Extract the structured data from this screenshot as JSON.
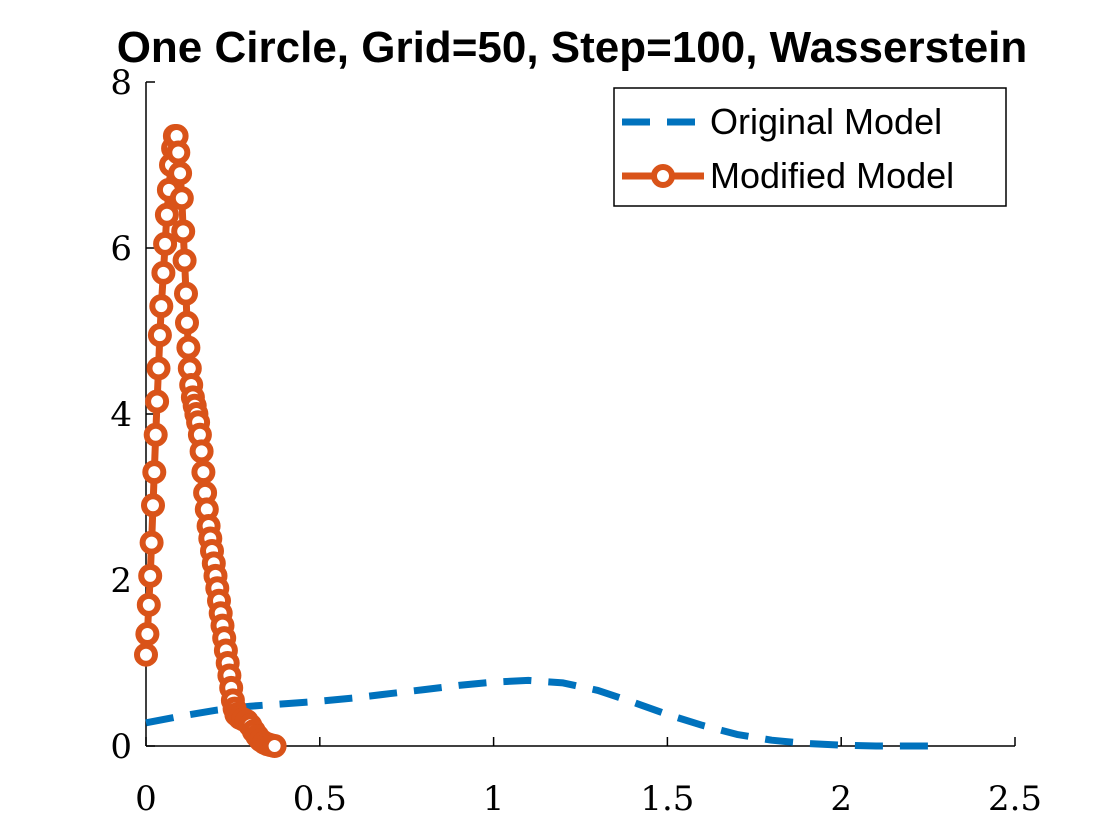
{
  "chart_data": {
    "type": "line",
    "title": "One Circle, Grid=50, Step=100, Wasserstein",
    "xlabel": "",
    "ylabel": "",
    "xlim": [
      0,
      2.5
    ],
    "ylim": [
      0,
      8
    ],
    "xticks": [
      "0",
      "0.5",
      "1",
      "1.5",
      "2",
      "2.5"
    ],
    "yticks": [
      "0",
      "2",
      "4",
      "6",
      "8"
    ],
    "grid": false,
    "legend_position": "top-right",
    "series": [
      {
        "name": "Original Model",
        "style": "dashed",
        "color": "#0072BD",
        "points": [
          [
            0.0,
            0.28
          ],
          [
            0.1,
            0.36
          ],
          [
            0.2,
            0.43
          ],
          [
            0.3,
            0.48
          ],
          [
            0.4,
            0.51
          ],
          [
            0.5,
            0.54
          ],
          [
            0.6,
            0.58
          ],
          [
            0.7,
            0.63
          ],
          [
            0.8,
            0.68
          ],
          [
            0.9,
            0.73
          ],
          [
            1.0,
            0.77
          ],
          [
            1.1,
            0.79
          ],
          [
            1.2,
            0.76
          ],
          [
            1.3,
            0.67
          ],
          [
            1.4,
            0.53
          ],
          [
            1.5,
            0.38
          ],
          [
            1.6,
            0.25
          ],
          [
            1.7,
            0.14
          ],
          [
            1.8,
            0.07
          ],
          [
            1.9,
            0.03
          ],
          [
            2.0,
            0.01
          ],
          [
            2.1,
            0.0
          ],
          [
            2.2,
            0.0
          ],
          [
            2.26,
            0.0
          ]
        ]
      },
      {
        "name": "Modified Model",
        "style": "solid-with-circles",
        "color": "#D95319",
        "points": [
          [
            0.0,
            1.1
          ],
          [
            0.004,
            1.35
          ],
          [
            0.008,
            1.7
          ],
          [
            0.012,
            2.05
          ],
          [
            0.016,
            2.45
          ],
          [
            0.02,
            2.9
          ],
          [
            0.024,
            3.3
          ],
          [
            0.028,
            3.75
          ],
          [
            0.032,
            4.15
          ],
          [
            0.036,
            4.55
          ],
          [
            0.04,
            4.95
          ],
          [
            0.044,
            5.3
          ],
          [
            0.05,
            5.7
          ],
          [
            0.055,
            6.05
          ],
          [
            0.06,
            6.4
          ],
          [
            0.066,
            6.7
          ],
          [
            0.072,
            7.0
          ],
          [
            0.078,
            7.2
          ],
          [
            0.083,
            7.35
          ],
          [
            0.088,
            7.35
          ],
          [
            0.093,
            7.15
          ],
          [
            0.098,
            6.9
          ],
          [
            0.103,
            6.6
          ],
          [
            0.107,
            6.2
          ],
          [
            0.111,
            5.85
          ],
          [
            0.115,
            5.45
          ],
          [
            0.118,
            5.1
          ],
          [
            0.122,
            4.8
          ],
          [
            0.126,
            4.55
          ],
          [
            0.13,
            4.35
          ],
          [
            0.135,
            4.2
          ],
          [
            0.14,
            4.1
          ],
          [
            0.145,
            4.0
          ],
          [
            0.15,
            3.9
          ],
          [
            0.155,
            3.75
          ],
          [
            0.16,
            3.55
          ],
          [
            0.165,
            3.3
          ],
          [
            0.17,
            3.05
          ],
          [
            0.175,
            2.85
          ],
          [
            0.18,
            2.65
          ],
          [
            0.185,
            2.5
          ],
          [
            0.19,
            2.35
          ],
          [
            0.195,
            2.2
          ],
          [
            0.2,
            2.05
          ],
          [
            0.205,
            1.9
          ],
          [
            0.21,
            1.75
          ],
          [
            0.215,
            1.6
          ],
          [
            0.22,
            1.45
          ],
          [
            0.225,
            1.3
          ],
          [
            0.23,
            1.15
          ],
          [
            0.235,
            1.0
          ],
          [
            0.24,
            0.85
          ],
          [
            0.245,
            0.7
          ],
          [
            0.25,
            0.55
          ],
          [
            0.255,
            0.45
          ],
          [
            0.26,
            0.38
          ],
          [
            0.27,
            0.34
          ],
          [
            0.28,
            0.32
          ],
          [
            0.29,
            0.3
          ],
          [
            0.3,
            0.25
          ],
          [
            0.31,
            0.18
          ],
          [
            0.32,
            0.12
          ],
          [
            0.33,
            0.07
          ],
          [
            0.34,
            0.04
          ],
          [
            0.35,
            0.02
          ],
          [
            0.36,
            0.01
          ],
          [
            0.37,
            0.0
          ]
        ]
      }
    ]
  }
}
